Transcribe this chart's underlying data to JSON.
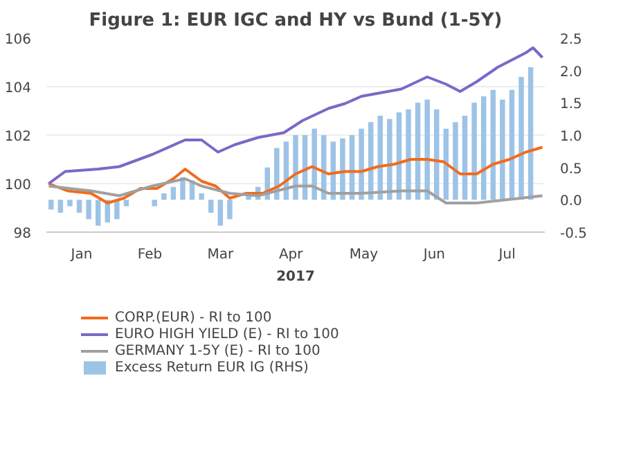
{
  "chart_data": {
    "type": "line",
    "title": "Figure 1: EUR IGC and HY vs Bund (1-5Y)",
    "xlabel": "2017",
    "xlim": [
      "2017-01-01",
      "2017-08-01"
    ],
    "xticks": [
      {
        "value": "2017-01-16",
        "label": "Jan"
      },
      {
        "value": "2017-02-14",
        "label": "Feb"
      },
      {
        "value": "2017-03-16",
        "label": "Mar"
      },
      {
        "value": "2017-04-15",
        "label": "Apr"
      },
      {
        "value": "2017-05-16",
        "label": "May"
      },
      {
        "value": "2017-06-15",
        "label": "Jun"
      },
      {
        "value": "2017-07-16",
        "label": "Jul"
      }
    ],
    "ylim": [
      98,
      106
    ],
    "yticks": [
      98,
      100,
      102,
      104,
      106
    ],
    "y2lim": [
      -0.5,
      2.5
    ],
    "y2ticks": [
      {
        "value": -0.5,
        "label": "-0.5"
      },
      {
        "value": 0,
        "label": "0.0"
      },
      {
        "value": 0.5,
        "label": "0.5"
      },
      {
        "value": 1,
        "label": "1.0"
      },
      {
        "value": 1.5,
        "label": "1.5"
      },
      {
        "value": 2,
        "label": "2.0"
      },
      {
        "value": 2.5,
        "label": "2.5"
      }
    ],
    "grid": "y",
    "legend": "bottom",
    "series": [
      {
        "name": "Excess Return EUR IG (RHS)",
        "type": "bar",
        "axis": "y2",
        "color": "#9dc3e6",
        "x": [
          "2017-01-03",
          "2017-01-07",
          "2017-01-11",
          "2017-01-15",
          "2017-01-19",
          "2017-01-23",
          "2017-01-27",
          "2017-01-31",
          "2017-02-04",
          "2017-02-08",
          "2017-02-12",
          "2017-02-16",
          "2017-02-20",
          "2017-02-24",
          "2017-02-28",
          "2017-03-04",
          "2017-03-08",
          "2017-03-12",
          "2017-03-16",
          "2017-03-20",
          "2017-03-24",
          "2017-03-28",
          "2017-04-01",
          "2017-04-05",
          "2017-04-09",
          "2017-04-13",
          "2017-04-17",
          "2017-04-21",
          "2017-04-25",
          "2017-04-29",
          "2017-05-03",
          "2017-05-07",
          "2017-05-11",
          "2017-05-15",
          "2017-05-19",
          "2017-05-23",
          "2017-05-27",
          "2017-05-31",
          "2017-06-04",
          "2017-06-08",
          "2017-06-12",
          "2017-06-16",
          "2017-06-20",
          "2017-06-24",
          "2017-06-28",
          "2017-07-02",
          "2017-07-06",
          "2017-07-10",
          "2017-07-14",
          "2017-07-18",
          "2017-07-22",
          "2017-07-26"
        ],
        "values": [
          -0.15,
          -0.2,
          -0.1,
          -0.2,
          -0.3,
          -0.4,
          -0.35,
          -0.3,
          -0.1,
          0.0,
          0.0,
          -0.1,
          0.1,
          0.2,
          0.35,
          0.3,
          0.1,
          -0.2,
          -0.4,
          -0.3,
          0.0,
          0.1,
          0.2,
          0.5,
          0.8,
          0.9,
          1.0,
          1.0,
          1.1,
          1.0,
          0.9,
          0.95,
          1.0,
          1.1,
          1.2,
          1.3,
          1.25,
          1.35,
          1.4,
          1.5,
          1.55,
          1.4,
          1.1,
          1.2,
          1.3,
          1.5,
          1.6,
          1.7,
          1.55,
          1.7,
          1.9,
          2.05
        ]
      },
      {
        "name": "CORP.(EUR) - RI to 100",
        "color": "#f26b1d",
        "x": [
          "2017-01-02",
          "2017-01-10",
          "2017-01-20",
          "2017-01-27",
          "2017-02-03",
          "2017-02-10",
          "2017-02-17",
          "2017-02-24",
          "2017-03-01",
          "2017-03-08",
          "2017-03-14",
          "2017-03-20",
          "2017-03-27",
          "2017-04-03",
          "2017-04-10",
          "2017-04-17",
          "2017-04-24",
          "2017-05-01",
          "2017-05-08",
          "2017-05-15",
          "2017-05-22",
          "2017-05-29",
          "2017-06-05",
          "2017-06-12",
          "2017-06-19",
          "2017-06-26",
          "2017-07-03",
          "2017-07-10",
          "2017-07-17",
          "2017-07-24",
          "2017-07-31"
        ],
        "values": [
          100.0,
          99.7,
          99.6,
          99.2,
          99.4,
          99.8,
          99.8,
          100.2,
          100.6,
          100.1,
          99.9,
          99.4,
          99.6,
          99.6,
          99.9,
          100.4,
          100.7,
          100.4,
          100.5,
          100.5,
          100.7,
          100.8,
          101.0,
          101.0,
          100.9,
          100.4,
          100.4,
          100.8,
          101.0,
          101.3,
          101.5
        ]
      },
      {
        "name": "EURO HIGH YIELD (E) - RI to 100",
        "color": "#7b68c8",
        "x": [
          "2017-01-02",
          "2017-01-09",
          "2017-01-23",
          "2017-02-01",
          "2017-02-15",
          "2017-03-01",
          "2017-03-08",
          "2017-03-15",
          "2017-03-22",
          "2017-04-01",
          "2017-04-12",
          "2017-04-20",
          "2017-05-01",
          "2017-05-08",
          "2017-05-15",
          "2017-06-01",
          "2017-06-12",
          "2017-06-20",
          "2017-06-26",
          "2017-07-03",
          "2017-07-12",
          "2017-07-24",
          "2017-07-27",
          "2017-07-31"
        ],
        "values": [
          100.0,
          100.5,
          100.6,
          100.7,
          101.2,
          101.8,
          101.8,
          101.3,
          101.6,
          101.9,
          102.1,
          102.6,
          103.1,
          103.3,
          103.6,
          103.9,
          104.4,
          104.1,
          103.8,
          104.2,
          104.8,
          105.4,
          105.6,
          105.2
        ]
      },
      {
        "name": "GERMANY 1-5Y (E) - RI to 100",
        "color": "#a0a0a0",
        "x": [
          "2017-01-02",
          "2017-01-20",
          "2017-02-01",
          "2017-02-15",
          "2017-03-01",
          "2017-03-08",
          "2017-03-20",
          "2017-04-01",
          "2017-04-17",
          "2017-04-24",
          "2017-05-01",
          "2017-05-15",
          "2017-06-01",
          "2017-06-12",
          "2017-06-20",
          "2017-07-03",
          "2017-07-31"
        ],
        "values": [
          99.9,
          99.7,
          99.5,
          99.9,
          100.2,
          99.9,
          99.6,
          99.5,
          99.9,
          99.9,
          99.6,
          99.6,
          99.7,
          99.7,
          99.2,
          99.2,
          99.5
        ]
      }
    ]
  }
}
